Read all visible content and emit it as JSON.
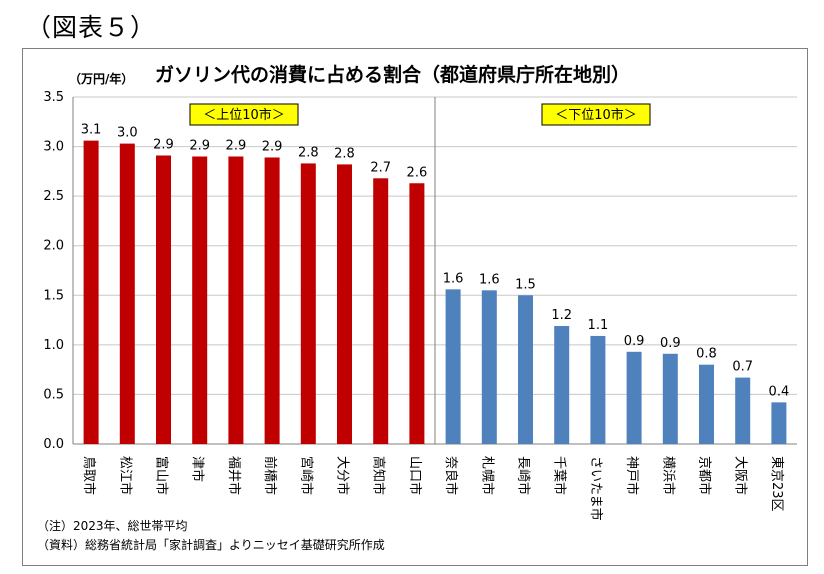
{
  "figure_label": "（図表５）",
  "chart_data": {
    "type": "bar",
    "title": "ガソリン代の消費に占める割合（都道府県庁所在地別）",
    "unit_label": "（万円/年）",
    "ylim": [
      0,
      3.5
    ],
    "yticks": [
      "0.0",
      "0.5",
      "1.0",
      "1.5",
      "2.0",
      "2.5",
      "3.0",
      "3.5"
    ],
    "grid": true,
    "categories": [
      "鳥取市",
      "松江市",
      "富山市",
      "津市",
      "福井市",
      "前橋市",
      "宮崎市",
      "大分市",
      "高知市",
      "山口市",
      "奈良市",
      "札幌市",
      "長崎市",
      "千葉市",
      "さいたま市",
      "神戸市",
      "横浜市",
      "京都市",
      "大阪市",
      "東京23区"
    ],
    "values": [
      3.06,
      3.03,
      2.91,
      2.9,
      2.9,
      2.89,
      2.83,
      2.82,
      2.68,
      2.63,
      1.56,
      1.55,
      1.5,
      1.19,
      1.09,
      0.93,
      0.91,
      0.8,
      0.67,
      0.42
    ],
    "labels": [
      "3.1",
      "3.0",
      "2.9",
      "2.9",
      "2.9",
      "2.9",
      "2.8",
      "2.8",
      "2.7",
      "2.6",
      "1.6",
      "1.6",
      "1.5",
      "1.2",
      "1.1",
      "0.9",
      "0.9",
      "0.8",
      "0.7",
      "0.4"
    ],
    "groups": [
      {
        "label": "＜上位10市＞",
        "count": 10,
        "color": "#c00000"
      },
      {
        "label": "＜下位10市＞",
        "count": 10,
        "color": "#4f81bd"
      }
    ],
    "group_label_bg": "#ffff00"
  },
  "notes": [
    "（注）2023年、総世帯平均",
    "（資料）総務省統計局「家計調査」よりニッセイ基礎研究所作成"
  ]
}
